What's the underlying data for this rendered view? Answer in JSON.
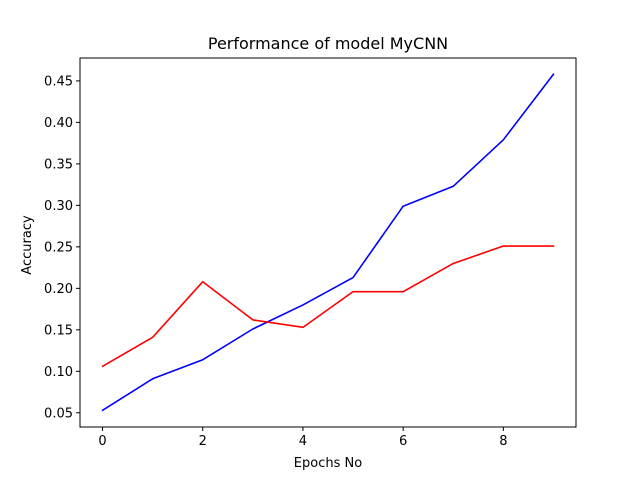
{
  "chart_data": {
    "type": "line",
    "title": "Performance of model MyCNN",
    "xlabel": "Epochs No",
    "ylabel": "Accuracy",
    "x": [
      0,
      1,
      2,
      3,
      4,
      5,
      6,
      7,
      8,
      9
    ],
    "xlim": [
      -0.45,
      9.45
    ],
    "ylim": [
      0.0329,
      0.4776
    ],
    "xticks": [
      0,
      2,
      4,
      6,
      8
    ],
    "xtick_labels": [
      "0",
      "2",
      "4",
      "6",
      "8"
    ],
    "yticks": [
      0.05,
      0.1,
      0.15,
      0.2,
      0.25,
      0.3,
      0.35,
      0.4,
      0.45
    ],
    "ytick_labels": [
      "0.05",
      "0.10",
      "0.15",
      "0.20",
      "0.25",
      "0.30",
      "0.35",
      "0.40",
      "0.45"
    ],
    "grid": false,
    "legend": "none",
    "series": [
      {
        "color": "#0000ff",
        "values": [
          0.053,
          0.091,
          0.114,
          0.151,
          0.18,
          0.213,
          0.299,
          0.323,
          0.379,
          0.458
        ]
      },
      {
        "color": "#ff0000",
        "values": [
          0.106,
          0.141,
          0.208,
          0.162,
          0.153,
          0.196,
          0.196,
          0.23,
          0.251,
          0.251
        ]
      }
    ]
  }
}
